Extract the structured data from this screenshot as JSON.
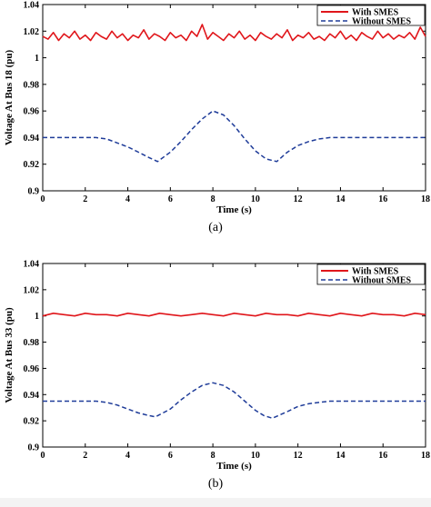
{
  "figure": {
    "caption_a": "(a)",
    "caption_b": "(b)"
  },
  "colors": {
    "with_smes": "#e0161b",
    "without_smes": "#1f3c99",
    "axis": "#000000"
  },
  "chart_data": [
    {
      "type": "line",
      "title": "",
      "xlabel": "Time (s)",
      "ylabel": "Voltage At Bus 18 (pu)",
      "xlim": [
        0,
        18
      ],
      "ylim": [
        0.9,
        1.04
      ],
      "x_ticks": [
        "0",
        "2",
        "4",
        "6",
        "8",
        "10",
        "12",
        "14",
        "16",
        "18"
      ],
      "y_ticks": [
        "0.9",
        "0.92",
        "0.94",
        "0.96",
        "0.98",
        "1",
        "1.02",
        "1.04"
      ],
      "legend_placement": "top-right",
      "grid": false,
      "series": [
        {
          "name": "With SMES",
          "style": "solid",
          "color": "#e0161b",
          "x": [
            0,
            0.25,
            0.5,
            0.75,
            1,
            1.25,
            1.5,
            1.75,
            2,
            2.25,
            2.5,
            2.75,
            3,
            3.25,
            3.5,
            3.75,
            4,
            4.25,
            4.5,
            4.75,
            5,
            5.25,
            5.5,
            5.75,
            6,
            6.25,
            6.5,
            6.75,
            7,
            7.25,
            7.5,
            7.75,
            8,
            8.25,
            8.5,
            8.75,
            9,
            9.25,
            9.5,
            9.75,
            10,
            10.25,
            10.5,
            10.75,
            11,
            11.25,
            11.5,
            11.75,
            12,
            12.25,
            12.5,
            12.75,
            13,
            13.25,
            13.5,
            13.75,
            14,
            14.25,
            14.5,
            14.75,
            15,
            15.25,
            15.5,
            15.75,
            16,
            16.25,
            16.5,
            16.75,
            17,
            17.25,
            17.5,
            17.75,
            18
          ],
          "y": [
            1.016,
            1.014,
            1.019,
            1.013,
            1.018,
            1.015,
            1.02,
            1.014,
            1.017,
            1.013,
            1.019,
            1.016,
            1.014,
            1.02,
            1.015,
            1.018,
            1.013,
            1.017,
            1.015,
            1.021,
            1.014,
            1.018,
            1.016,
            1.013,
            1.019,
            1.015,
            1.017,
            1.013,
            1.02,
            1.016,
            1.025,
            1.014,
            1.019,
            1.016,
            1.013,
            1.018,
            1.015,
            1.02,
            1.014,
            1.017,
            1.013,
            1.019,
            1.016,
            1.014,
            1.018,
            1.015,
            1.021,
            1.013,
            1.017,
            1.015,
            1.019,
            1.014,
            1.016,
            1.013,
            1.018,
            1.015,
            1.02,
            1.014,
            1.017,
            1.013,
            1.019,
            1.016,
            1.014,
            1.02,
            1.015,
            1.018,
            1.014,
            1.017,
            1.015,
            1.019,
            1.014,
            1.023,
            1.016
          ]
        },
        {
          "name": "Without SMES",
          "style": "dashed",
          "color": "#1f3c99",
          "x": [
            0,
            2.5,
            3,
            3.5,
            4,
            4.5,
            5,
            5.4,
            6,
            6.5,
            7,
            7.5,
            8,
            8.5,
            9,
            9.5,
            10,
            10.5,
            11,
            11.5,
            12,
            12.5,
            13,
            13.5,
            14,
            18
          ],
          "y": [
            0.94,
            0.94,
            0.939,
            0.936,
            0.933,
            0.929,
            0.925,
            0.922,
            0.929,
            0.937,
            0.946,
            0.954,
            0.96,
            0.957,
            0.949,
            0.939,
            0.93,
            0.924,
            0.922,
            0.929,
            0.934,
            0.937,
            0.939,
            0.94,
            0.94,
            0.94
          ]
        }
      ]
    },
    {
      "type": "line",
      "title": "",
      "xlabel": "Time (s)",
      "ylabel": "Voltage At Bus 33 (pu)",
      "xlim": [
        0,
        18
      ],
      "ylim": [
        0.9,
        1.04
      ],
      "x_ticks": [
        "0",
        "2",
        "4",
        "6",
        "8",
        "10",
        "12",
        "14",
        "16",
        "18"
      ],
      "y_ticks": [
        "0.9",
        "0.92",
        "0.94",
        "0.96",
        "0.98",
        "1",
        "1.02",
        "1.04"
      ],
      "legend_placement": "top-right",
      "grid": false,
      "series": [
        {
          "name": "With SMES",
          "style": "solid",
          "color": "#e0161b",
          "x": [
            0,
            0.5,
            1,
            1.5,
            2,
            2.5,
            3,
            3.5,
            4,
            4.5,
            5,
            5.5,
            6,
            6.5,
            7,
            7.5,
            8,
            8.5,
            9,
            9.5,
            10,
            10.5,
            11,
            11.5,
            12,
            12.5,
            13,
            13.5,
            14,
            14.5,
            15,
            15.5,
            16,
            16.5,
            17,
            17.5,
            18
          ],
          "y": [
            1.0,
            1.002,
            1.001,
            1.0,
            1.002,
            1.001,
            1.001,
            1.0,
            1.002,
            1.001,
            1.0,
            1.002,
            1.001,
            1.0,
            1.001,
            1.002,
            1.001,
            1.0,
            1.002,
            1.001,
            1.0,
            1.002,
            1.001,
            1.001,
            1.0,
            1.002,
            1.001,
            1.0,
            1.002,
            1.001,
            1.0,
            1.002,
            1.001,
            1.001,
            1.0,
            1.002,
            1.001
          ]
        },
        {
          "name": "Without SMES",
          "style": "dashed",
          "color": "#1f3c99",
          "x": [
            0,
            2.5,
            3,
            3.5,
            4,
            4.5,
            5,
            5.3,
            6,
            6.5,
            7,
            7.5,
            8,
            8.5,
            9,
            9.5,
            10,
            10.4,
            10.8,
            11.5,
            12,
            12.5,
            13,
            13.5,
            14,
            18
          ],
          "y": [
            0.935,
            0.935,
            0.934,
            0.932,
            0.929,
            0.926,
            0.924,
            0.923,
            0.929,
            0.936,
            0.942,
            0.947,
            0.949,
            0.947,
            0.942,
            0.935,
            0.928,
            0.924,
            0.922,
            0.927,
            0.931,
            0.933,
            0.934,
            0.935,
            0.935,
            0.935
          ]
        }
      ]
    }
  ]
}
